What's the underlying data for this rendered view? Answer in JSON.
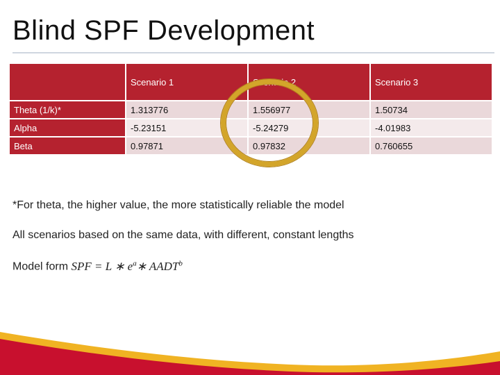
{
  "slide": {
    "title": "Blind SPF Development"
  },
  "table": {
    "headers": [
      "",
      "Scenario 1",
      "Scenario 2",
      "Scenario 3"
    ],
    "rows": [
      {
        "label": "Theta (1/k)*",
        "values": [
          "1.313776",
          "1.556977",
          "1.50734"
        ]
      },
      {
        "label": "Alpha",
        "values": [
          "-5.23151",
          "-5.24279",
          "-4.01983"
        ]
      },
      {
        "label": "Beta",
        "values": [
          "0.97871",
          "0.97832",
          "0.760655"
        ]
      }
    ]
  },
  "notes": {
    "theta_note": "*For theta, the higher value, the more statistically reliable the model",
    "scenarios_note": "All scenarios based on the same data, with different, constant lengths",
    "model_form_label": "Model form",
    "formula": {
      "lhs": "SPF",
      "eq": " = ",
      "L": "L",
      "op1": " ∗ ",
      "e": "e",
      "a": "a",
      "op2": "∗ ",
      "aadt": "AADT",
      "b": "b"
    }
  },
  "colors": {
    "header_red": "#b5222f",
    "highlight_ring": "#d3a52a",
    "footer_red": "#c8102e",
    "footer_gold": "#f0b323"
  }
}
